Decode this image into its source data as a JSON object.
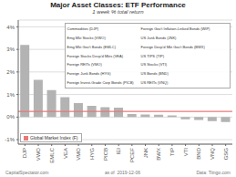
{
  "chart_data": {
    "type": "bar",
    "title": "Major Asset Classes: ETF Performance",
    "subtitle": "1 week % total return",
    "categories": [
      "DJP",
      "VWO",
      "EMLC",
      "VEA",
      "VMO",
      "HYG",
      "PICB",
      "IEI",
      "PCEF",
      "JNK",
      "BWX",
      "TIP",
      "VTI",
      "BND",
      "VNQ",
      "GSG"
    ],
    "values": [
      3.2,
      1.65,
      1.2,
      0.88,
      0.62,
      0.5,
      0.44,
      0.42,
      0.13,
      0.11,
      0.1,
      0.07,
      -0.1,
      -0.13,
      -0.18,
      -0.22
    ],
    "color": "#b3b3b3",
    "ylim": [
      -1.2,
      4.3
    ],
    "yticks": [
      {
        "value": -1,
        "label": "-1%"
      },
      {
        "value": 0,
        "label": "0%"
      },
      {
        "value": 1,
        "label": "1%"
      },
      {
        "value": 2,
        "label": "2%"
      },
      {
        "value": 3,
        "label": "3%"
      },
      {
        "value": 4,
        "label": "4%"
      }
    ],
    "grid": true,
    "reference_line": {
      "name": "Global Market Index (F)",
      "value": 0.25,
      "color": "#e87878"
    },
    "legend": "lower left",
    "annotations": [
      [
        "Commodities (DJP)",
        "Emg Mkt Stocks (VWO)",
        "Emg Mkt Gov't Bonds (EMLC)",
        "Foreign Stocks Devp'd Mkts (VEA)",
        "Foreign REITs (VMO)",
        "Foreign Junk Bonds (HYG)",
        "Foreign Invest-Grade Corp Bonds (PICB)"
      ],
      [
        "Foreign Gov't Inflation-Linked Bonds (WIP)",
        "US Junk Bonds (JNK)",
        "Foreign Devp'd Mkt Gov't Bonds (BWX)",
        "US TIPS (TIP)",
        "US Stocks (VTI)",
        "US Bonds (BND)",
        "US REITs (VNQ)"
      ]
    ],
    "footer": [
      "CapitalSpectator.com",
      "as of  2019-12-06",
      "Data: Tiingo.com"
    ]
  }
}
